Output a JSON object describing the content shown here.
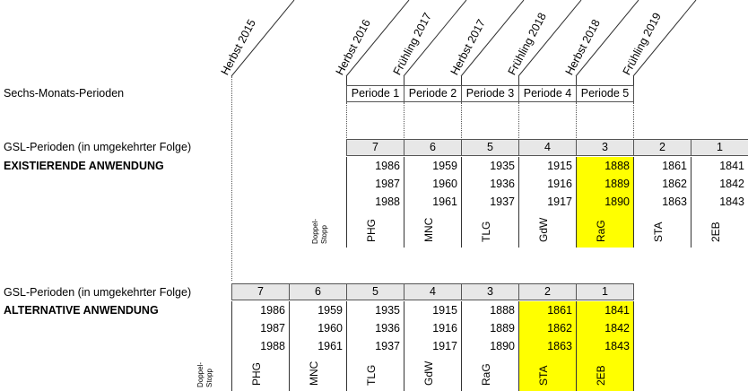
{
  "row_labels": {
    "six_month": "Sechs-Monats-Perioden",
    "gsl_existing": "GSL-Perioden (in umgekehrter Folge)",
    "existing_title": "EXISTIERENDE ANWENDUNG",
    "gsl_alternative": "GSL-Perioden (in umgekehrter Folge)",
    "alternative_title": "ALTERNATIVE ANWENDUNG"
  },
  "dates": [
    "Herbst 2015",
    "Herbst 2016",
    "Frühling 2017",
    "Herbst 2017",
    "Frühling 2018",
    "Herbst 2018",
    "Frühling 2019"
  ],
  "periods": [
    "Periode 1",
    "Periode 2",
    "Periode 3",
    "Periode 4",
    "Periode 5"
  ],
  "doppel_stopp": "Doppel-\nStopp",
  "colors": {
    "highlight": "#ffff00",
    "header_bg": "#e7e7e7",
    "border": "#555555"
  },
  "existing": {
    "columns": [
      {
        "num": "7",
        "values": [
          "1986",
          "1987",
          "1988"
        ],
        "code": "PHG",
        "highlight": false
      },
      {
        "num": "6",
        "values": [
          "1959",
          "1960",
          "1961"
        ],
        "code": "MNC",
        "highlight": false
      },
      {
        "num": "5",
        "values": [
          "1935",
          "1936",
          "1937"
        ],
        "code": "TLG",
        "highlight": false
      },
      {
        "num": "4",
        "values": [
          "1915",
          "1916",
          "1917"
        ],
        "code": "GdW",
        "highlight": false
      },
      {
        "num": "3",
        "values": [
          "1888",
          "1889",
          "1890"
        ],
        "code": "RaG",
        "highlight": true
      },
      {
        "num": "2",
        "values": [
          "1861",
          "1862",
          "1863"
        ],
        "code": "STA",
        "highlight": false
      },
      {
        "num": "1",
        "values": [
          "1841",
          "1842",
          "1843"
        ],
        "code": "2EB",
        "highlight": false
      }
    ]
  },
  "alternative": {
    "columns": [
      {
        "num": "7",
        "values": [
          "1986",
          "1987",
          "1988"
        ],
        "code": "PHG",
        "highlight": false
      },
      {
        "num": "6",
        "values": [
          "1959",
          "1960",
          "1961"
        ],
        "code": "MNC",
        "highlight": false
      },
      {
        "num": "5",
        "values": [
          "1935",
          "1936",
          "1937"
        ],
        "code": "TLG",
        "highlight": false
      },
      {
        "num": "4",
        "values": [
          "1915",
          "1916",
          "1917"
        ],
        "code": "GdW",
        "highlight": false
      },
      {
        "num": "3",
        "values": [
          "1888",
          "1889",
          "1890"
        ],
        "code": "RaG",
        "highlight": false
      },
      {
        "num": "2",
        "values": [
          "1861",
          "1862",
          "1863"
        ],
        "code": "STA",
        "highlight": true
      },
      {
        "num": "1",
        "values": [
          "1841",
          "1842",
          "1843"
        ],
        "code": "2EB",
        "highlight": true
      }
    ]
  }
}
